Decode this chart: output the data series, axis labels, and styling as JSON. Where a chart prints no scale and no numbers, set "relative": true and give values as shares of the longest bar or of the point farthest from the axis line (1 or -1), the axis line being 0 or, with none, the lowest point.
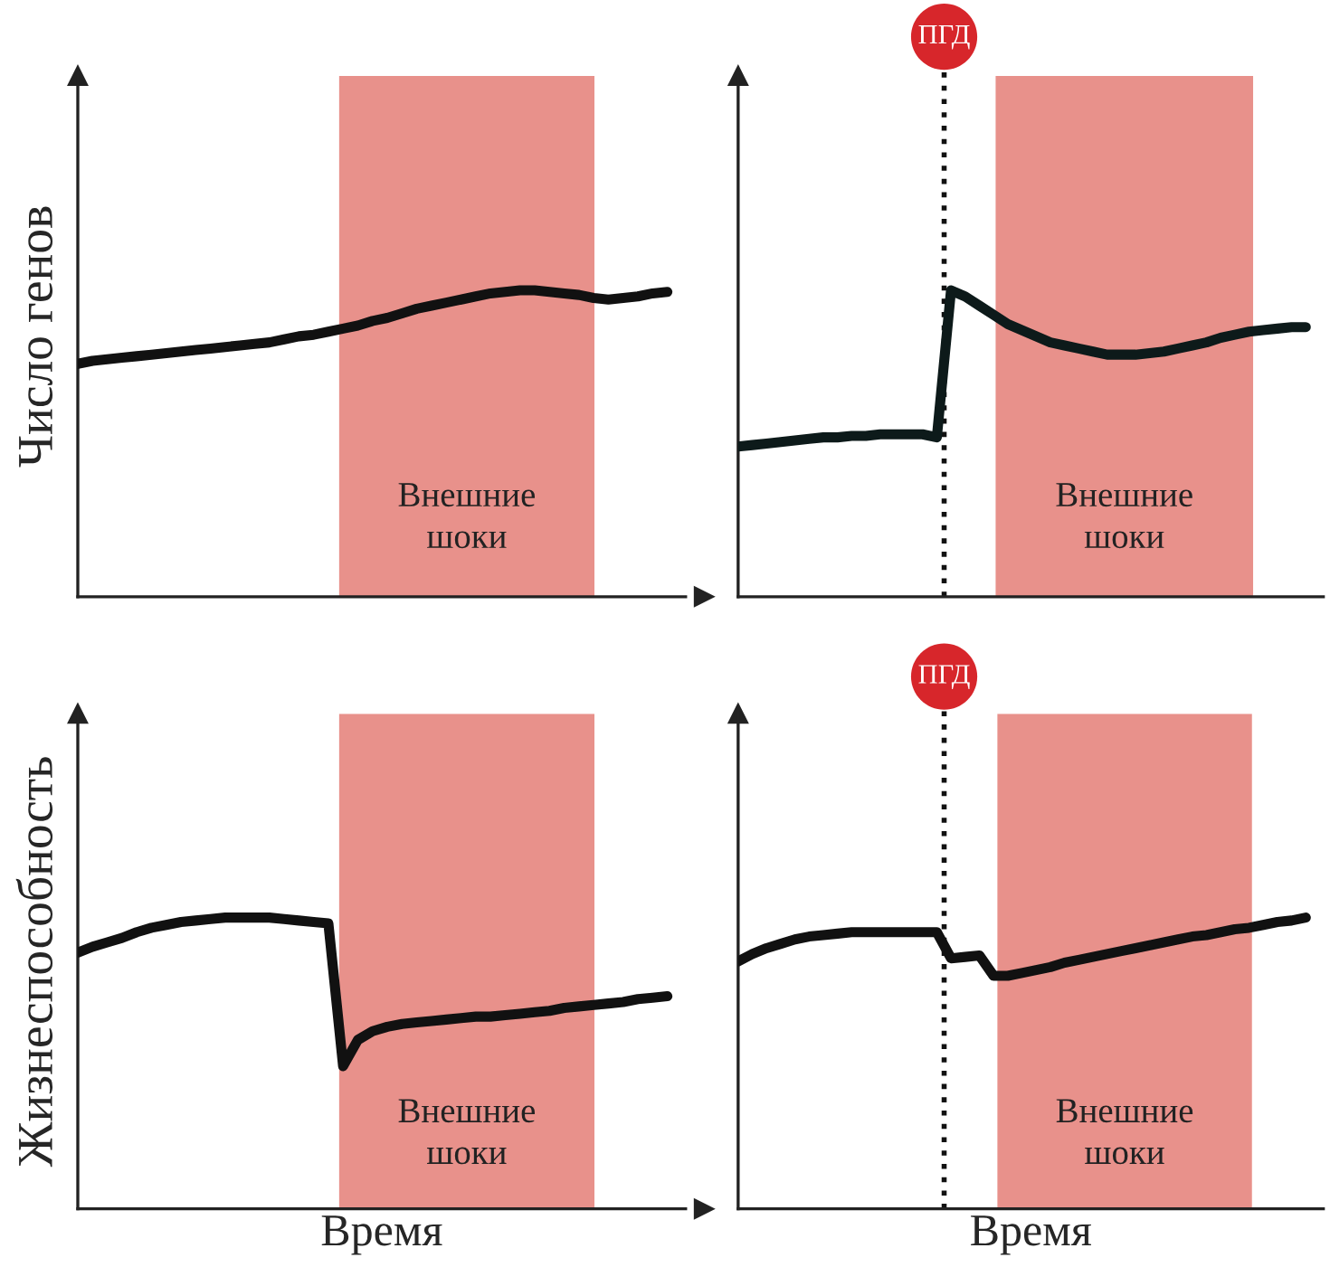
{
  "chart_data": [
    {
      "type": "line",
      "relative": true,
      "ylabel": "Число генов",
      "marker": "none",
      "line_style": "solid",
      "categories": [
        null,
        null,
        null,
        null,
        null,
        null,
        null,
        null,
        null,
        null,
        null,
        null,
        null,
        null,
        null,
        null,
        null,
        null,
        null,
        null,
        null,
        null,
        null,
        null,
        null,
        null,
        null,
        null,
        null,
        null,
        null,
        null,
        null,
        null,
        null,
        null,
        null,
        null,
        null,
        null,
        null
      ],
      "series": [
        {
          "color": "#111111",
          "values": [
            0.76,
            0.77,
            0.775,
            0.78,
            0.785,
            0.79,
            0.795,
            0.8,
            0.805,
            0.81,
            0.815,
            0.82,
            0.825,
            0.83,
            0.84,
            0.85,
            0.855,
            0.865,
            0.875,
            0.885,
            0.9,
            0.91,
            0.925,
            0.94,
            0.95,
            0.96,
            0.97,
            0.98,
            0.99,
            0.995,
            1,
            1,
            0.995,
            0.99,
            0.985,
            0.975,
            0.97,
            0.975,
            0.98,
            0.99,
            0.995
          ]
        }
      ],
      "annotations": [
        "Внешние\nшоки"
      ]
    },
    {
      "type": "line",
      "relative": true,
      "marker": "none",
      "line_style": "solid",
      "categories": [
        null,
        null,
        null,
        null,
        null,
        null,
        null,
        null,
        null,
        null,
        null,
        null,
        null,
        null,
        null,
        null,
        null,
        null,
        null,
        null,
        null,
        null,
        null,
        null,
        null,
        null,
        null,
        null,
        null,
        null,
        null,
        null,
        null,
        null,
        null,
        null,
        null,
        null,
        null,
        null,
        null
      ],
      "series": [
        {
          "color": "#0d1a1a",
          "values": [
            0.49,
            0.495,
            0.5,
            0.505,
            0.51,
            0.515,
            0.52,
            0.52,
            0.525,
            0.525,
            0.53,
            0.53,
            0.53,
            0.53,
            0.52,
            1,
            0.98,
            0.95,
            0.92,
            0.89,
            0.87,
            0.85,
            0.83,
            0.82,
            0.81,
            0.8,
            0.79,
            0.79,
            0.79,
            0.795,
            0.8,
            0.81,
            0.82,
            0.83,
            0.845,
            0.855,
            0.865,
            0.87,
            0.875,
            0.88,
            0.88
          ]
        }
      ],
      "annotations": [
        "Внешние\nшоки",
        "ПГД"
      ]
    },
    {
      "type": "line",
      "relative": true,
      "ylabel": "Жизнеспособность",
      "xlabel": "Время",
      "marker": "none",
      "line_style": "solid",
      "categories": [
        null,
        null,
        null,
        null,
        null,
        null,
        null,
        null,
        null,
        null,
        null,
        null,
        null,
        null,
        null,
        null,
        null,
        null,
        null,
        null,
        null,
        null,
        null,
        null,
        null,
        null,
        null,
        null,
        null,
        null,
        null,
        null,
        null,
        null,
        null,
        null,
        null,
        null,
        null,
        null,
        null
      ],
      "series": [
        {
          "color": "#111111",
          "values": [
            0.88,
            0.9,
            0.915,
            0.93,
            0.95,
            0.965,
            0.975,
            0.985,
            0.99,
            0.995,
            1,
            1,
            1,
            1,
            0.995,
            0.99,
            0.985,
            0.98,
            0.49,
            0.58,
            0.61,
            0.625,
            0.635,
            0.64,
            0.645,
            0.65,
            0.655,
            0.66,
            0.66,
            0.665,
            0.67,
            0.675,
            0.68,
            0.69,
            0.695,
            0.7,
            0.705,
            0.71,
            0.72,
            0.725,
            0.73
          ]
        }
      ],
      "annotations": [
        "Внешние\nшоки"
      ]
    },
    {
      "type": "line",
      "relative": true,
      "xlabel": "Время",
      "marker": "none",
      "line_style": "solid",
      "categories": [
        null,
        null,
        null,
        null,
        null,
        null,
        null,
        null,
        null,
        null,
        null,
        null,
        null,
        null,
        null,
        null,
        null,
        null,
        null,
        null,
        null,
        null,
        null,
        null,
        null,
        null,
        null,
        null,
        null,
        null,
        null,
        null,
        null,
        null,
        null,
        null,
        null,
        null,
        null,
        null,
        null
      ],
      "series": [
        {
          "color": "#111111",
          "values": [
            0.85,
            0.875,
            0.895,
            0.91,
            0.925,
            0.935,
            0.94,
            0.945,
            0.95,
            0.95,
            0.95,
            0.95,
            0.95,
            0.95,
            0.95,
            0.86,
            0.865,
            0.87,
            0.8,
            0.8,
            0.81,
            0.82,
            0.83,
            0.845,
            0.855,
            0.865,
            0.875,
            0.885,
            0.895,
            0.905,
            0.915,
            0.925,
            0.935,
            0.94,
            0.95,
            0.96,
            0.965,
            0.975,
            0.985,
            0.99,
            1
          ]
        }
      ],
      "annotations": [
        "Внешние\nшоки",
        "ПГД"
      ]
    }
  ]
}
